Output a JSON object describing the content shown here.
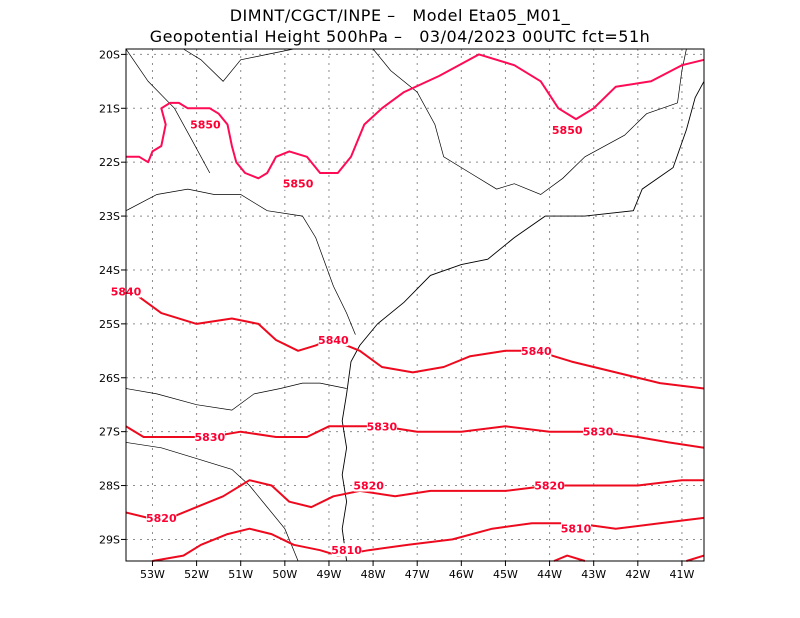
{
  "header": {
    "line1": "DIMNT/CGCT/INPE –   Model Eta05_M01_",
    "line2": "Geopotential Height 500hPa –   03/04/2023 00UTC fct=51h"
  },
  "axes": {
    "lat_labels": [
      "20S",
      "21S",
      "22S",
      "23S",
      "24S",
      "25S",
      "26S",
      "27S",
      "28S",
      "29S"
    ],
    "lon_labels": [
      "53W",
      "52W",
      "51W",
      "50W",
      "49W",
      "48W",
      "47W",
      "46W",
      "45W",
      "44W",
      "43W",
      "42W",
      "41W"
    ]
  },
  "colors": {
    "contour_5850": "#ff0a55",
    "contour_other": "#ee0a1e",
    "coast": "#000000",
    "grid": "#8c8c8c"
  },
  "chart_data": {
    "type": "contour",
    "xlim": [
      -53.6,
      -40.5
    ],
    "ylim": [
      -29.4,
      -19.9
    ],
    "contour_labels": [
      {
        "value": "5850",
        "lon": -51.8,
        "lat": -21.3
      },
      {
        "value": "5850",
        "lon": -49.7,
        "lat": -22.4
      },
      {
        "value": "5850",
        "lon": -43.6,
        "lat": -21.4
      },
      {
        "value": "5840",
        "lon": -53.6,
        "lat": -24.4
      },
      {
        "value": "5840",
        "lon": -48.9,
        "lat": -25.3
      },
      {
        "value": "5840",
        "lon": -44.3,
        "lat": -25.5
      },
      {
        "value": "5830",
        "lon": -51.7,
        "lat": -27.1
      },
      {
        "value": "5830",
        "lon": -47.8,
        "lat": -26.9
      },
      {
        "value": "5830",
        "lon": -42.9,
        "lat": -27.0
      },
      {
        "value": "5820",
        "lon": -52.8,
        "lat": -28.6
      },
      {
        "value": "5820",
        "lon": -48.1,
        "lat": -28.0
      },
      {
        "value": "5820",
        "lon": -44.0,
        "lat": -28.0
      },
      {
        "value": "5810",
        "lon": -43.4,
        "lat": -28.8
      },
      {
        "value": "5810",
        "lon": -48.6,
        "lat": -29.2
      }
    ],
    "contours": [
      {
        "level": 5850,
        "points": [
          [
            -53.6,
            -21.9
          ],
          [
            -53.3,
            -21.9
          ],
          [
            -53.1,
            -22.0
          ],
          [
            -53.0,
            -21.8
          ],
          [
            -52.8,
            -21.7
          ],
          [
            -52.7,
            -21.3
          ],
          [
            -52.8,
            -21.0
          ],
          [
            -52.6,
            -20.9
          ],
          [
            -52.4,
            -20.9
          ],
          [
            -52.2,
            -21.0
          ],
          [
            -52.0,
            -21.0
          ],
          [
            -51.7,
            -21.0
          ],
          [
            -51.5,
            -21.1
          ],
          [
            -51.3,
            -21.3
          ],
          [
            -51.2,
            -21.7
          ],
          [
            -51.1,
            -22.0
          ],
          [
            -50.9,
            -22.2
          ],
          [
            -50.6,
            -22.3
          ],
          [
            -50.4,
            -22.2
          ],
          [
            -50.2,
            -21.9
          ],
          [
            -49.9,
            -21.8
          ],
          [
            -49.5,
            -21.9
          ],
          [
            -49.2,
            -22.2
          ],
          [
            -48.8,
            -22.2
          ],
          [
            -48.5,
            -21.9
          ],
          [
            -48.2,
            -21.3
          ],
          [
            -47.8,
            -21.0
          ],
          [
            -47.3,
            -20.7
          ],
          [
            -46.5,
            -20.4
          ],
          [
            -45.6,
            -20.0
          ],
          [
            -44.8,
            -20.2
          ],
          [
            -44.2,
            -20.5
          ],
          [
            -43.8,
            -21.0
          ],
          [
            -43.4,
            -21.2
          ],
          [
            -43.0,
            -21.0
          ],
          [
            -42.5,
            -20.6
          ],
          [
            -41.7,
            -20.5
          ],
          [
            -41.0,
            -20.2
          ],
          [
            -40.5,
            -20.1
          ]
        ]
      },
      {
        "level": 5840,
        "points": [
          [
            -53.6,
            -24.3
          ],
          [
            -53.3,
            -24.5
          ],
          [
            -52.8,
            -24.8
          ],
          [
            -52.0,
            -25.0
          ],
          [
            -51.2,
            -24.9
          ],
          [
            -50.6,
            -25.0
          ],
          [
            -50.2,
            -25.3
          ],
          [
            -49.7,
            -25.5
          ],
          [
            -49.3,
            -25.4
          ],
          [
            -49.0,
            -25.3
          ],
          [
            -48.6,
            -25.4
          ],
          [
            -48.3,
            -25.5
          ],
          [
            -47.8,
            -25.8
          ],
          [
            -47.1,
            -25.9
          ],
          [
            -46.4,
            -25.8
          ],
          [
            -45.8,
            -25.6
          ],
          [
            -45.0,
            -25.5
          ],
          [
            -44.3,
            -25.5
          ],
          [
            -43.5,
            -25.7
          ],
          [
            -42.5,
            -25.9
          ],
          [
            -41.5,
            -26.1
          ],
          [
            -40.5,
            -26.2
          ]
        ]
      },
      {
        "level": 5830,
        "points": [
          [
            -53.6,
            -26.9
          ],
          [
            -53.2,
            -27.1
          ],
          [
            -52.5,
            -27.1
          ],
          [
            -51.7,
            -27.1
          ],
          [
            -51.0,
            -27.0
          ],
          [
            -50.2,
            -27.1
          ],
          [
            -49.5,
            -27.1
          ],
          [
            -49.0,
            -26.9
          ],
          [
            -48.5,
            -26.9
          ],
          [
            -47.8,
            -26.9
          ],
          [
            -47.0,
            -27.0
          ],
          [
            -46.0,
            -27.0
          ],
          [
            -45.0,
            -26.9
          ],
          [
            -44.0,
            -27.0
          ],
          [
            -42.9,
            -27.0
          ],
          [
            -42.0,
            -27.1
          ],
          [
            -41.3,
            -27.2
          ],
          [
            -40.5,
            -27.3
          ]
        ]
      },
      {
        "level": 5820,
        "points": [
          [
            -53.6,
            -28.5
          ],
          [
            -53.1,
            -28.6
          ],
          [
            -52.6,
            -28.6
          ],
          [
            -52.0,
            -28.4
          ],
          [
            -51.4,
            -28.2
          ],
          [
            -50.8,
            -27.9
          ],
          [
            -50.3,
            -28.0
          ],
          [
            -49.9,
            -28.3
          ],
          [
            -49.4,
            -28.4
          ],
          [
            -48.9,
            -28.2
          ],
          [
            -48.3,
            -28.1
          ],
          [
            -47.5,
            -28.2
          ],
          [
            -46.7,
            -28.1
          ],
          [
            -46.0,
            -28.1
          ],
          [
            -45.0,
            -28.1
          ],
          [
            -44.0,
            -28.0
          ],
          [
            -43.0,
            -28.0
          ],
          [
            -42.0,
            -28.0
          ],
          [
            -41.0,
            -27.9
          ],
          [
            -40.5,
            -27.9
          ]
        ]
      },
      {
        "level": 5810,
        "points": [
          [
            -53.0,
            -29.4
          ],
          [
            -52.3,
            -29.3
          ],
          [
            -51.9,
            -29.1
          ],
          [
            -51.3,
            -28.9
          ],
          [
            -50.8,
            -28.8
          ],
          [
            -50.3,
            -28.9
          ],
          [
            -49.8,
            -29.1
          ],
          [
            -49.2,
            -29.2
          ],
          [
            -48.8,
            -29.3
          ],
          [
            -48.1,
            -29.2
          ],
          [
            -47.2,
            -29.1
          ],
          [
            -46.2,
            -29.0
          ],
          [
            -45.3,
            -28.8
          ],
          [
            -44.4,
            -28.7
          ],
          [
            -43.4,
            -28.7
          ],
          [
            -42.5,
            -28.8
          ],
          [
            -41.5,
            -28.7
          ],
          [
            -40.5,
            -28.6
          ]
        ]
      },
      {
        "level": 5810,
        "points": [
          [
            -43.9,
            -29.4
          ],
          [
            -43.6,
            -29.3
          ],
          [
            -43.2,
            -29.4
          ]
        ]
      },
      {
        "level": 5810,
        "points": [
          [
            -40.9,
            -29.4
          ],
          [
            -40.5,
            -29.3
          ]
        ]
      }
    ],
    "coastline": [
      [
        -48.6,
        -29.4
      ],
      [
        -48.7,
        -28.8
      ],
      [
        -48.6,
        -28.3
      ],
      [
        -48.7,
        -27.8
      ],
      [
        -48.6,
        -27.3
      ],
      [
        -48.7,
        -26.8
      ],
      [
        -48.6,
        -26.3
      ],
      [
        -48.5,
        -25.7
      ],
      [
        -48.3,
        -25.4
      ],
      [
        -47.9,
        -25.0
      ],
      [
        -47.3,
        -24.6
      ],
      [
        -46.7,
        -24.1
      ],
      [
        -46.0,
        -23.9
      ],
      [
        -45.4,
        -23.8
      ],
      [
        -44.8,
        -23.4
      ],
      [
        -44.1,
        -23.0
      ],
      [
        -43.2,
        -23.0
      ],
      [
        -42.1,
        -22.9
      ],
      [
        -41.9,
        -22.5
      ],
      [
        -41.2,
        -22.1
      ],
      [
        -40.9,
        -21.4
      ],
      [
        -40.7,
        -20.8
      ],
      [
        -40.5,
        -20.5
      ]
    ],
    "borders": [
      [
        [
          -53.6,
          -22.9
        ],
        [
          -52.9,
          -22.6
        ],
        [
          -52.2,
          -22.5
        ],
        [
          -51.6,
          -22.6
        ],
        [
          -51.0,
          -22.6
        ],
        [
          -50.4,
          -22.9
        ],
        [
          -49.6,
          -23.0
        ],
        [
          -49.3,
          -23.4
        ],
        [
          -48.9,
          -24.3
        ],
        [
          -48.6,
          -24.8
        ],
        [
          -48.4,
          -25.2
        ]
      ],
      [
        [
          -53.6,
          -26.2
        ],
        [
          -52.9,
          -26.3
        ],
        [
          -52.0,
          -26.5
        ],
        [
          -51.2,
          -26.6
        ],
        [
          -50.7,
          -26.3
        ],
        [
          -50.1,
          -26.2
        ],
        [
          -49.6,
          -26.1
        ],
        [
          -49.2,
          -26.1
        ],
        [
          -48.6,
          -26.2
        ]
      ],
      [
        [
          -53.6,
          -27.2
        ],
        [
          -52.8,
          -27.3
        ],
        [
          -52.0,
          -27.5
        ],
        [
          -51.2,
          -27.7
        ],
        [
          -50.8,
          -28.0
        ],
        [
          -50.4,
          -28.4
        ],
        [
          -50.0,
          -28.8
        ],
        [
          -49.8,
          -29.2
        ],
        [
          -49.7,
          -29.4
        ]
      ],
      [
        [
          -52.3,
          -19.9
        ],
        [
          -51.9,
          -20.1
        ],
        [
          -51.4,
          -20.5
        ],
        [
          -51.0,
          -20.1
        ],
        [
          -50.4,
          -20.0
        ],
        [
          -49.8,
          -19.9
        ]
      ],
      [
        [
          -48.0,
          -19.9
        ],
        [
          -47.6,
          -20.3
        ],
        [
          -47.0,
          -20.7
        ],
        [
          -46.6,
          -21.3
        ],
        [
          -46.4,
          -21.9
        ],
        [
          -45.8,
          -22.2
        ],
        [
          -45.2,
          -22.5
        ],
        [
          -44.8,
          -22.4
        ],
        [
          -44.2,
          -22.6
        ],
        [
          -43.7,
          -22.3
        ],
        [
          -43.2,
          -21.9
        ],
        [
          -42.3,
          -21.5
        ],
        [
          -41.8,
          -21.1
        ],
        [
          -41.1,
          -20.9
        ]
      ],
      [
        [
          -41.1,
          -20.9
        ],
        [
          -41.0,
          -20.3
        ],
        [
          -40.9,
          -19.9
        ]
      ],
      [
        [
          -53.6,
          -19.9
        ],
        [
          -53.1,
          -20.5
        ],
        [
          -52.5,
          -21.0
        ],
        [
          -52.1,
          -21.6
        ],
        [
          -51.7,
          -22.2
        ]
      ]
    ]
  }
}
